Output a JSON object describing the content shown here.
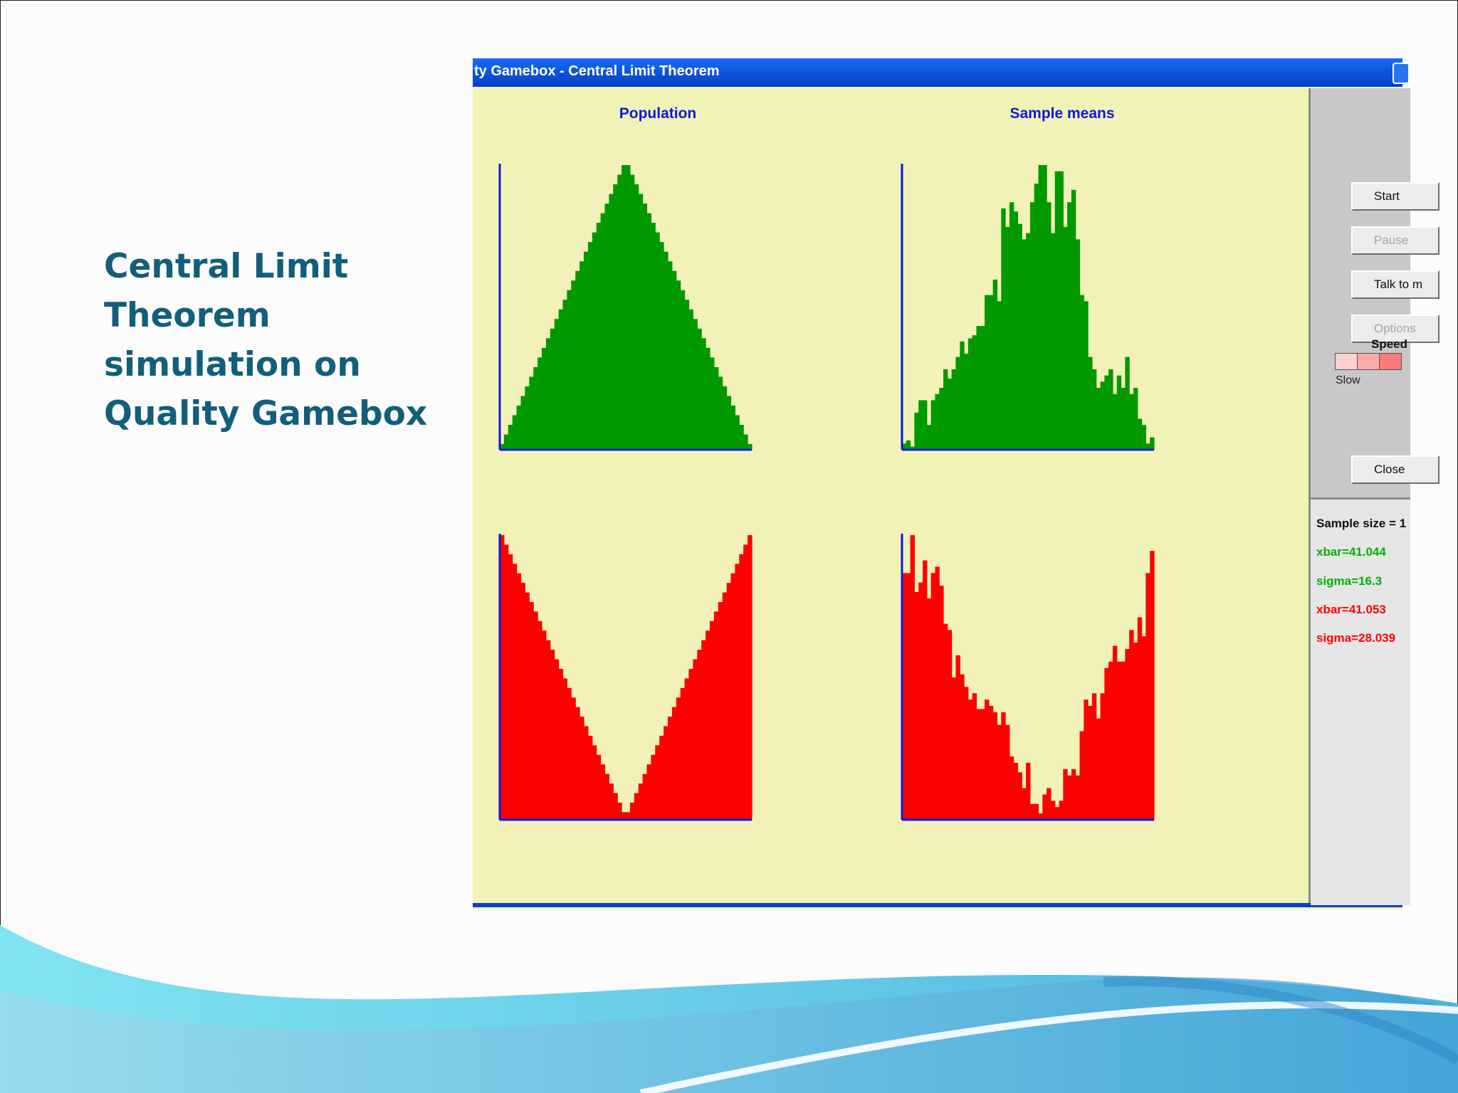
{
  "slide": {
    "title_lines": [
      "Central Limit",
      "Theorem",
      "simulation on",
      "Quality Gamebox"
    ],
    "title_color": "#125e7b"
  },
  "window": {
    "title": "ty Gamebox - Central Limit Theorem",
    "chart_titles": {
      "population": "Population",
      "sample_means": "Sample means"
    },
    "buttons": [
      {
        "label": "Start",
        "enabled": true
      },
      {
        "label": "Pause",
        "enabled": false
      },
      {
        "label": "Talk to m",
        "enabled": true
      },
      {
        "label": "Options",
        "enabled": false
      },
      {
        "label": "Close",
        "enabled": true
      }
    ],
    "speed": {
      "label": "Speed",
      "slow_label": "Slow",
      "levels": 3
    },
    "stats": {
      "sample_size": "Sample size = 1",
      "green_xbar": "xbar=41.044",
      "green_sigma": "sigma=16.3",
      "red_xbar": "xbar=41.053",
      "red_sigma": "sigma=28.039"
    }
  },
  "colors": {
    "green": "#009900",
    "red": "#ff0000",
    "axis": "#0b1ad9",
    "bg": "#f2f2b8"
  },
  "chart_data": [
    {
      "type": "bar",
      "title": "Population",
      "series": [
        {
          "color": "green",
          "shape": "triangular",
          "bins": 60
        }
      ]
    },
    {
      "type": "bar",
      "title": "Sample means",
      "series": [
        {
          "color": "green",
          "values": [
            2,
            3,
            1,
            12,
            16,
            16,
            8,
            16,
            18,
            20,
            26,
            23,
            26,
            30,
            35,
            31,
            36,
            37,
            40,
            40,
            50,
            50,
            55,
            48,
            78,
            72,
            80,
            77,
            73,
            68,
            70,
            80,
            86,
            92,
            92,
            80,
            70,
            90,
            90,
            72,
            80,
            84,
            68,
            50,
            48,
            30,
            26,
            20,
            22,
            24,
            26,
            18,
            24,
            20,
            30,
            18,
            20,
            10,
            8,
            2,
            4
          ]
        }
      ]
    },
    {
      "type": "bar",
      "title": "Population",
      "series": [
        {
          "color": "red",
          "shape": "v-shaped",
          "bins": 60
        }
      ]
    },
    {
      "type": "bar",
      "title": "Sample means",
      "series": [
        {
          "color": "red",
          "values": [
            78,
            78,
            90,
            72,
            75,
            82,
            70,
            78,
            80,
            74,
            62,
            60,
            45,
            52,
            46,
            42,
            38,
            40,
            35,
            35,
            38,
            36,
            34,
            30,
            34,
            30,
            20,
            18,
            15,
            10,
            18,
            5,
            5,
            2,
            8,
            10,
            6,
            4,
            6,
            16,
            14,
            16,
            14,
            28,
            38,
            36,
            40,
            32,
            40,
            48,
            50,
            55,
            50,
            50,
            54,
            60,
            56,
            64,
            58,
            78,
            85
          ]
        }
      ]
    }
  ]
}
